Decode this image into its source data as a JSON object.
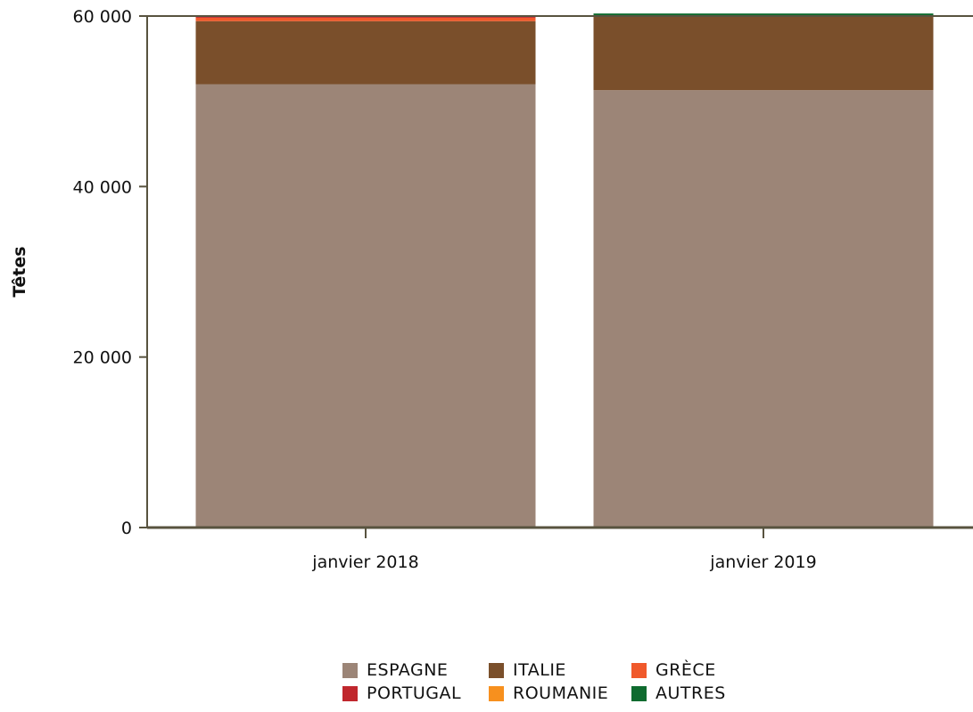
{
  "chart_data": {
    "type": "bar",
    "stacked": true,
    "categories": [
      "janvier 2018",
      "janvier 2019"
    ],
    "ylabel": "Têtes",
    "xlabel": "",
    "ylim": [
      0,
      60000
    ],
    "yticks": [
      0,
      20000,
      40000,
      60000
    ],
    "ytick_labels": [
      "0",
      "20 000",
      "40 000",
      "60 000"
    ],
    "grid": false,
    "legend_position": "bottom",
    "series": [
      {
        "name": "ESPAGNE",
        "color": "#9c8577",
        "values": [
          52000,
          51300
        ]
      },
      {
        "name": "ITALIE",
        "color": "#7a4f2b",
        "values": [
          7400,
          8700
        ]
      },
      {
        "name": "GRÈCE",
        "color": "#f0592b",
        "values": [
          400,
          0
        ]
      },
      {
        "name": "PORTUGAL",
        "color": "#c0272d",
        "values": [
          50,
          0
        ]
      },
      {
        "name": "ROUMANIE",
        "color": "#f7901e",
        "values": [
          0,
          0
        ]
      },
      {
        "name": "AUTRES",
        "color": "#0f6b2f",
        "values": [
          0,
          300
        ]
      }
    ]
  }
}
